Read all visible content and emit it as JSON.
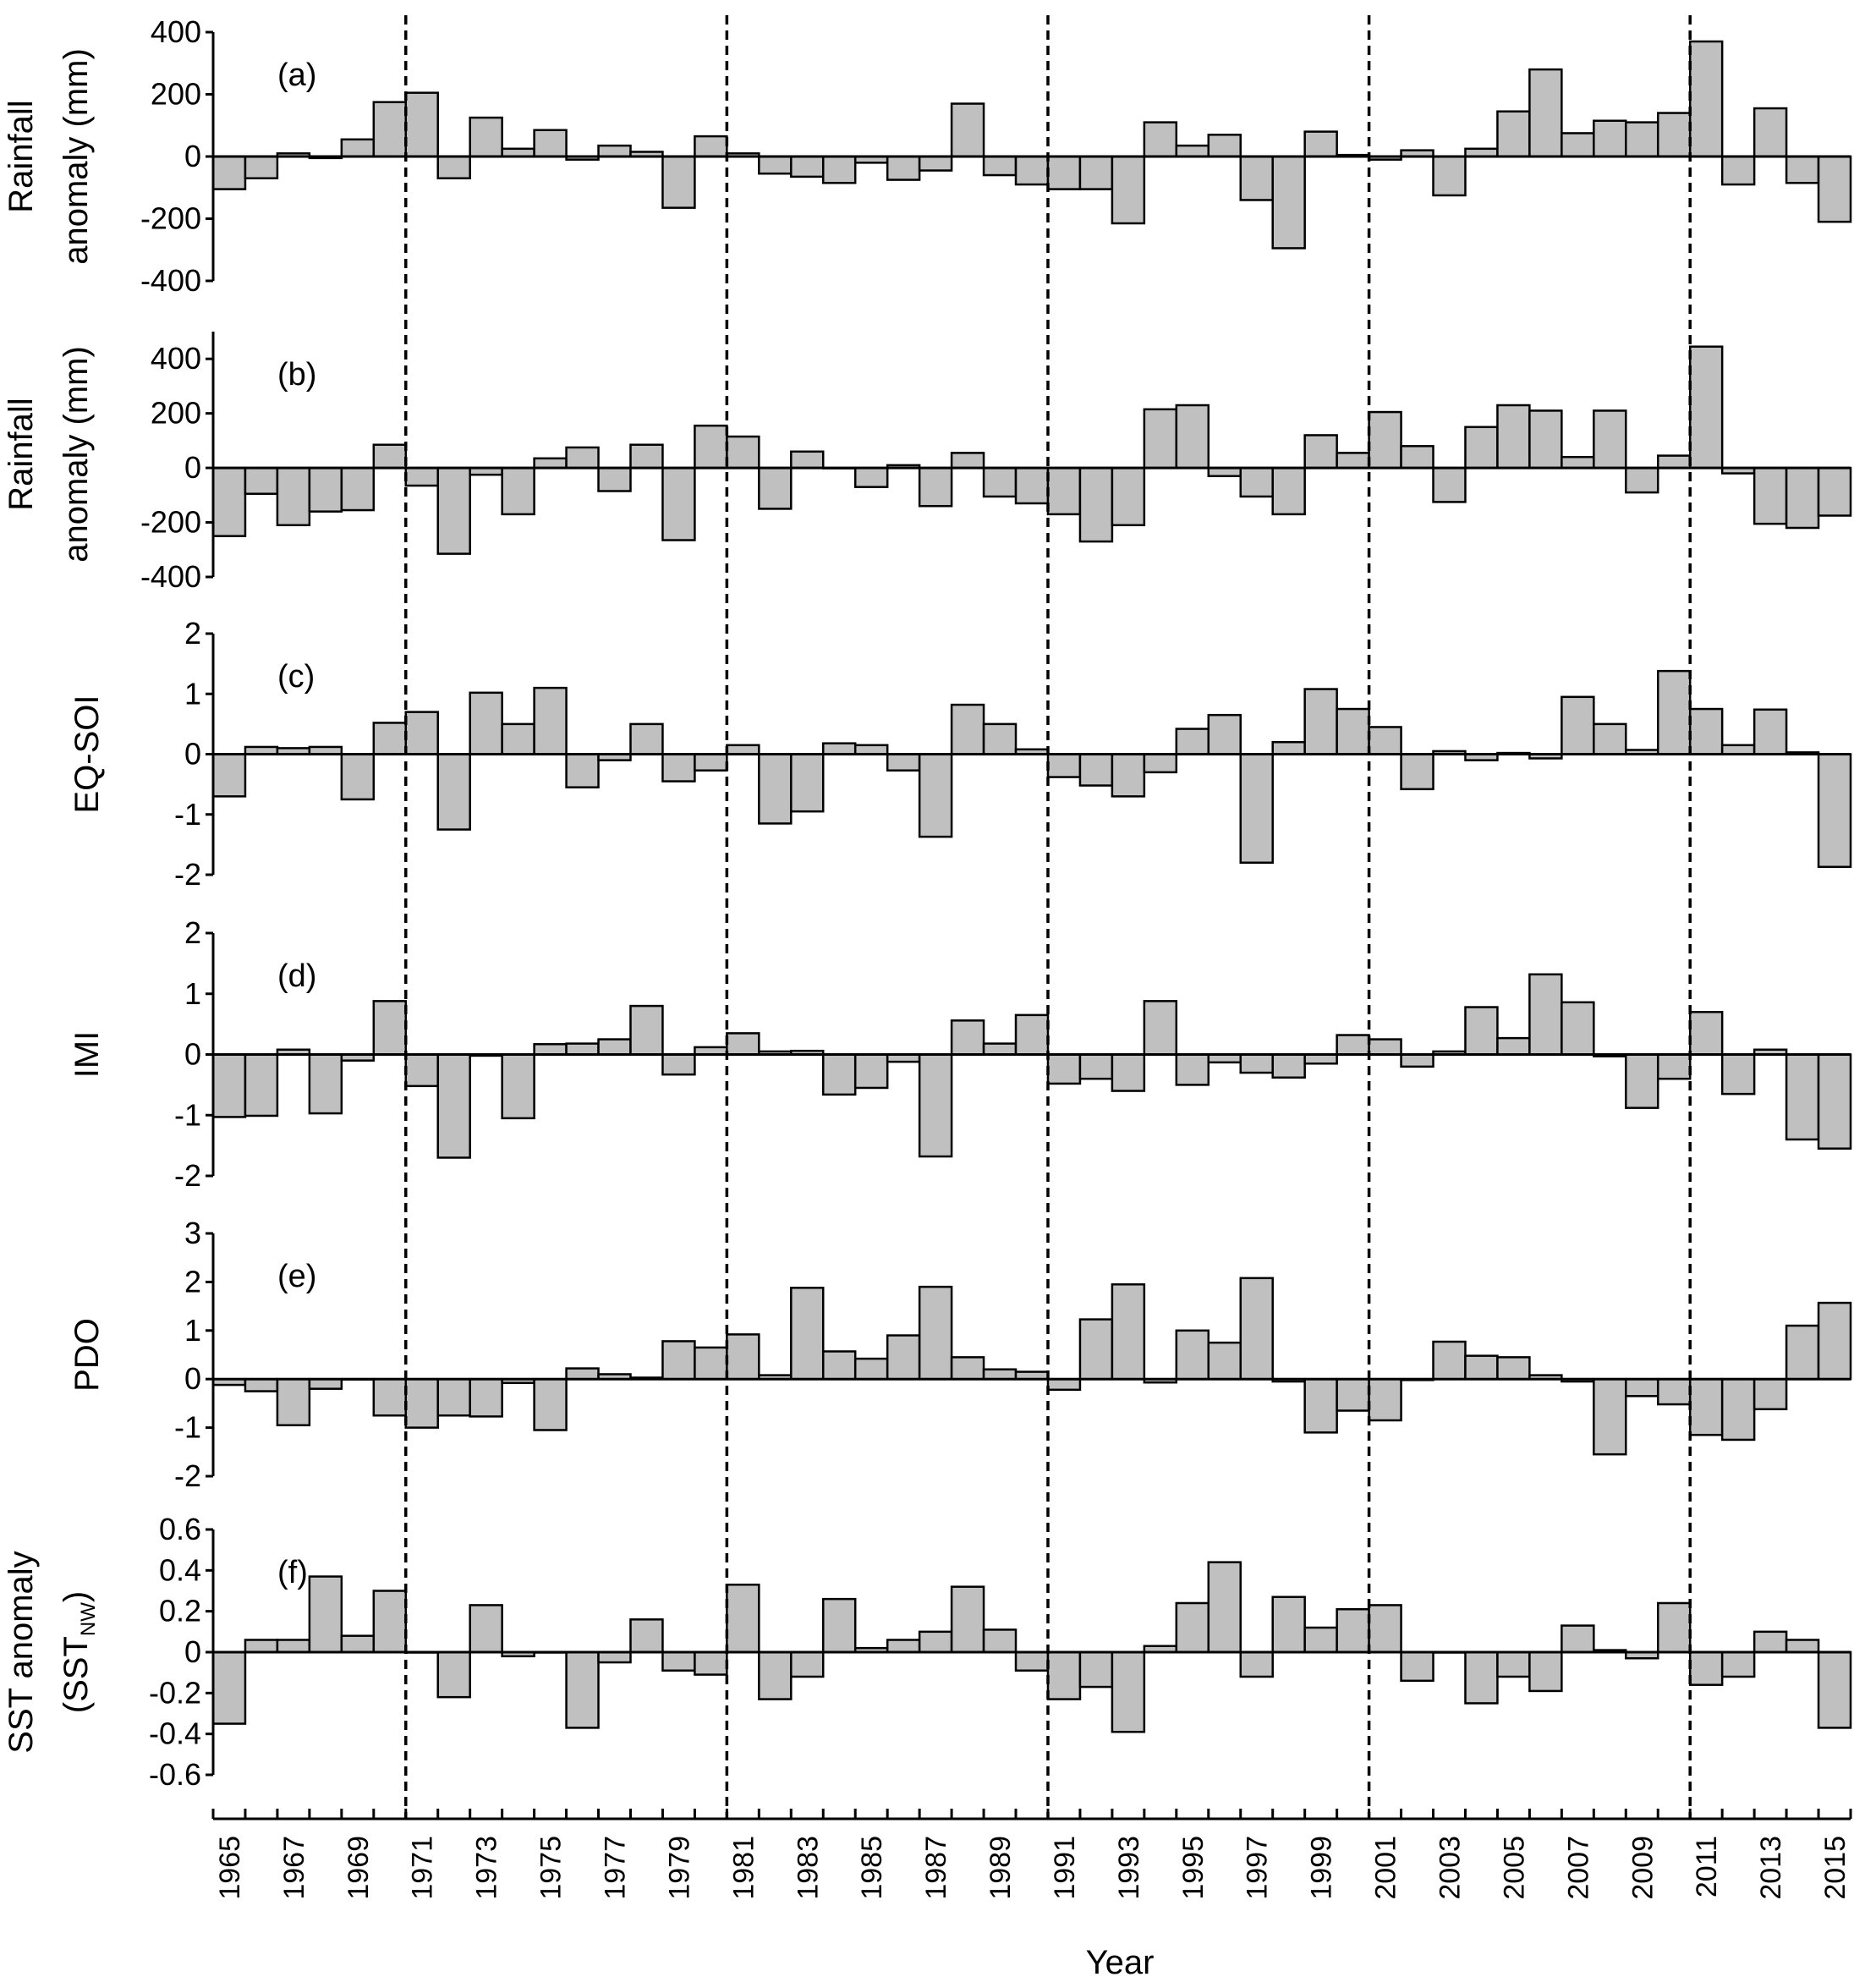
{
  "figure": {
    "xlabel": "Year",
    "decade_markers": [
      1970.5,
      1980.5,
      1990.5,
      2000.5,
      2010.5
    ]
  },
  "colors": {
    "bar_fill": "#c0c0c0",
    "bar_stroke": "#000000",
    "axis": "#000000",
    "dash": "#000000"
  },
  "chart_data": [
    {
      "type": "bar",
      "panel_label": "(a)",
      "ylabel_lines": [
        "Rainfall",
        "anomaly (mm)"
      ],
      "ylim": [
        -400,
        400
      ],
      "yticks": [
        400,
        200,
        0,
        -200,
        -400
      ],
      "ytick_labels": [
        "400",
        "200",
        "0",
        "-200",
        "-400"
      ],
      "categories": [
        1965,
        1966,
        1967,
        1968,
        1969,
        1970,
        1971,
        1972,
        1973,
        1974,
        1975,
        1976,
        1977,
        1978,
        1979,
        1980,
        1981,
        1982,
        1983,
        1984,
        1985,
        1986,
        1987,
        1988,
        1989,
        1990,
        1991,
        1992,
        1993,
        1994,
        1995,
        1996,
        1997,
        1998,
        1999,
        2000,
        2001,
        2002,
        2003,
        2004,
        2005,
        2006,
        2007,
        2008,
        2009,
        2010,
        2011,
        2012,
        2013,
        2014,
        2015
      ],
      "values": [
        -105,
        -70,
        10,
        -5,
        55,
        175,
        205,
        -70,
        125,
        25,
        85,
        -10,
        35,
        15,
        -165,
        65,
        10,
        -55,
        -65,
        -85,
        -20,
        -75,
        -45,
        170,
        -60,
        -90,
        -105,
        -105,
        -215,
        110,
        35,
        70,
        -140,
        -295,
        80,
        5,
        -10,
        20,
        -125,
        25,
        145,
        280,
        75,
        115,
        110,
        140,
        370,
        -90,
        155,
        -85,
        -210
      ]
    },
    {
      "type": "bar",
      "panel_label": "(b)",
      "ylabel_lines": [
        "Rainfall",
        "anomaly (mm)"
      ],
      "ylim": [
        -400,
        500
      ],
      "yticks": [
        400,
        200,
        0,
        -200,
        -400
      ],
      "ytick_labels": [
        "400",
        "200",
        "0",
        "-200",
        "-400"
      ],
      "categories": [
        1965,
        1966,
        1967,
        1968,
        1969,
        1970,
        1971,
        1972,
        1973,
        1974,
        1975,
        1976,
        1977,
        1978,
        1979,
        1980,
        1981,
        1982,
        1983,
        1984,
        1985,
        1986,
        1987,
        1988,
        1989,
        1990,
        1991,
        1992,
        1993,
        1994,
        1995,
        1996,
        1997,
        1998,
        1999,
        2000,
        2001,
        2002,
        2003,
        2004,
        2005,
        2006,
        2007,
        2008,
        2009,
        2010,
        2011,
        2012,
        2013,
        2014,
        2015
      ],
      "values": [
        -250,
        -95,
        -210,
        -160,
        -155,
        85,
        -65,
        -315,
        -25,
        -170,
        35,
        75,
        -85,
        85,
        -265,
        155,
        115,
        -150,
        60,
        0,
        -70,
        10,
        -140,
        55,
        -105,
        -130,
        -170,
        -270,
        -210,
        215,
        230,
        -30,
        -105,
        -170,
        120,
        55,
        205,
        80,
        -125,
        150,
        230,
        210,
        40,
        210,
        -90,
        45,
        445,
        -20,
        -205,
        -220,
        -175
      ]
    },
    {
      "type": "bar",
      "panel_label": "(c)",
      "ylabel_lines": [
        "EQ-SOI"
      ],
      "ylim": [
        -2,
        2
      ],
      "yticks": [
        2,
        1,
        0,
        -1,
        -2
      ],
      "ytick_labels": [
        "2",
        "1",
        "0",
        "-1",
        "-2"
      ],
      "categories": [
        1965,
        1966,
        1967,
        1968,
        1969,
        1970,
        1971,
        1972,
        1973,
        1974,
        1975,
        1976,
        1977,
        1978,
        1979,
        1980,
        1981,
        1982,
        1983,
        1984,
        1985,
        1986,
        1987,
        1988,
        1989,
        1990,
        1991,
        1992,
        1993,
        1994,
        1995,
        1996,
        1997,
        1998,
        1999,
        2000,
        2001,
        2002,
        2003,
        2004,
        2005,
        2006,
        2007,
        2008,
        2009,
        2010,
        2011,
        2012,
        2013,
        2014,
        2015
      ],
      "values": [
        -0.7,
        0.12,
        0.1,
        0.12,
        -0.75,
        0.52,
        0.7,
        -1.25,
        1.02,
        0.5,
        1.1,
        -0.55,
        -0.1,
        0.5,
        -0.45,
        -0.27,
        0.15,
        -1.15,
        -0.95,
        0.18,
        0.15,
        -0.27,
        -1.37,
        0.82,
        0.5,
        0.08,
        -0.38,
        -0.52,
        -0.7,
        -0.3,
        0.42,
        0.65,
        -1.8,
        0.2,
        1.08,
        0.75,
        0.45,
        -0.58,
        0.05,
        -0.1,
        0.02,
        -0.07,
        0.95,
        0.5,
        0.07,
        1.38,
        0.75,
        0.15,
        0.74,
        0.03,
        -1.87
      ]
    },
    {
      "type": "bar",
      "panel_label": "(d)",
      "ylabel_lines": [
        "IMI"
      ],
      "ylim": [
        -2,
        2
      ],
      "yticks": [
        2,
        1,
        0,
        -1,
        -2
      ],
      "ytick_labels": [
        "2",
        "1",
        "0",
        "-1",
        "-2"
      ],
      "categories": [
        1965,
        1966,
        1967,
        1968,
        1969,
        1970,
        1971,
        1972,
        1973,
        1974,
        1975,
        1976,
        1977,
        1978,
        1979,
        1980,
        1981,
        1982,
        1983,
        1984,
        1985,
        1986,
        1987,
        1988,
        1989,
        1990,
        1991,
        1992,
        1993,
        1994,
        1995,
        1996,
        1997,
        1998,
        1999,
        2000,
        2001,
        2002,
        2003,
        2004,
        2005,
        2006,
        2007,
        2008,
        2009,
        2010,
        2011,
        2012,
        2013,
        2014,
        2015
      ],
      "values": [
        -1.03,
        -1.01,
        0.08,
        -0.97,
        -0.1,
        0.88,
        -0.52,
        -1.7,
        -0.02,
        -1.05,
        0.17,
        0.18,
        0.25,
        0.8,
        -0.33,
        0.12,
        0.35,
        0.05,
        0.06,
        -0.66,
        -0.55,
        -0.12,
        -1.68,
        0.56,
        0.18,
        0.65,
        -0.48,
        -0.4,
        -0.6,
        0.88,
        -0.5,
        -0.13,
        -0.3,
        -0.38,
        -0.15,
        0.32,
        0.25,
        -0.2,
        0.05,
        0.78,
        0.27,
        1.32,
        0.86,
        -0.03,
        -0.88,
        -0.4,
        0.7,
        -0.65,
        0.08,
        -1.4,
        -1.55
      ]
    },
    {
      "type": "bar",
      "panel_label": "(e)",
      "ylabel_lines": [
        "PDO"
      ],
      "ylim": [
        -2,
        3
      ],
      "yticks": [
        3,
        2,
        1,
        0,
        -1,
        -2
      ],
      "ytick_labels": [
        "3",
        "2",
        "1",
        "0",
        "-1",
        "-2"
      ],
      "categories": [
        1965,
        1966,
        1967,
        1968,
        1969,
        1970,
        1971,
        1972,
        1973,
        1974,
        1975,
        1976,
        1977,
        1978,
        1979,
        1980,
        1981,
        1982,
        1983,
        1984,
        1985,
        1986,
        1987,
        1988,
        1989,
        1990,
        1991,
        1992,
        1993,
        1994,
        1995,
        1996,
        1997,
        1998,
        1999,
        2000,
        2001,
        2002,
        2003,
        2004,
        2005,
        2006,
        2007,
        2008,
        2009,
        2010,
        2011,
        2012,
        2013,
        2014,
        2015
      ],
      "values": [
        -0.12,
        -0.25,
        -0.95,
        -0.2,
        0,
        -0.75,
        -1.0,
        -0.75,
        -0.77,
        -0.08,
        -1.05,
        0.22,
        0.1,
        0.03,
        0.78,
        0.65,
        0.92,
        0.08,
        1.88,
        0.57,
        0.42,
        0.9,
        1.9,
        0.45,
        0.2,
        0.15,
        -0.22,
        1.23,
        1.95,
        -0.07,
        1.0,
        0.75,
        2.08,
        -0.05,
        -1.1,
        -0.65,
        -0.85,
        -0.02,
        0.77,
        0.48,
        0.45,
        0.08,
        -0.05,
        -1.55,
        -0.35,
        -0.52,
        -1.15,
        -1.25,
        -0.62,
        1.1,
        1.57
      ]
    },
    {
      "type": "bar",
      "panel_label": "(f)",
      "ylabel_lines": [
        "SST anomaly"
      ],
      "ylabel_sst": {
        "open": "(SST",
        "sub": "NW",
        "close": ")"
      },
      "ylim": [
        -0.6,
        0.6
      ],
      "yticks": [
        0.6,
        0.4,
        0.2,
        0,
        -0.2,
        -0.4,
        -0.6
      ],
      "ytick_labels": [
        "0.6",
        "0.4",
        "0.2",
        "0",
        "-0.2",
        "-0.4",
        "-0.6"
      ],
      "categories": [
        1965,
        1966,
        1967,
        1968,
        1969,
        1970,
        1971,
        1972,
        1973,
        1974,
        1975,
        1976,
        1977,
        1978,
        1979,
        1980,
        1981,
        1982,
        1983,
        1984,
        1985,
        1986,
        1987,
        1988,
        1989,
        1990,
        1991,
        1992,
        1993,
        1994,
        1995,
        1996,
        1997,
        1998,
        1999,
        2000,
        2001,
        2002,
        2003,
        2004,
        2005,
        2006,
        2007,
        2008,
        2009,
        2010,
        2011,
        2012,
        2013,
        2014,
        2015
      ],
      "values": [
        -0.35,
        0.06,
        0.06,
        0.37,
        0.08,
        0.3,
        0,
        -0.22,
        0.23,
        -0.02,
        0,
        -0.37,
        -0.05,
        0.16,
        -0.09,
        -0.11,
        0.33,
        -0.23,
        -0.12,
        0.26,
        0.02,
        0.06,
        0.1,
        0.32,
        0.11,
        -0.09,
        -0.23,
        -0.17,
        -0.39,
        0.03,
        0.24,
        0.44,
        -0.12,
        0.27,
        0.12,
        0.21,
        0.23,
        -0.14,
        0,
        -0.25,
        -0.12,
        -0.19,
        0.13,
        0.01,
        -0.03,
        0.24,
        -0.16,
        -0.12,
        0.1,
        0.06,
        -0.37
      ]
    }
  ],
  "x_tick_labels": [
    "1965",
    "1967",
    "1969",
    "1971",
    "1973",
    "1975",
    "1977",
    "1979",
    "1981",
    "1983",
    "1985",
    "1987",
    "1989",
    "1991",
    "1993",
    "1995",
    "1997",
    "1999",
    "2001",
    "2003",
    "2005",
    "2007",
    "2009",
    "2011",
    "2013",
    "2015"
  ]
}
